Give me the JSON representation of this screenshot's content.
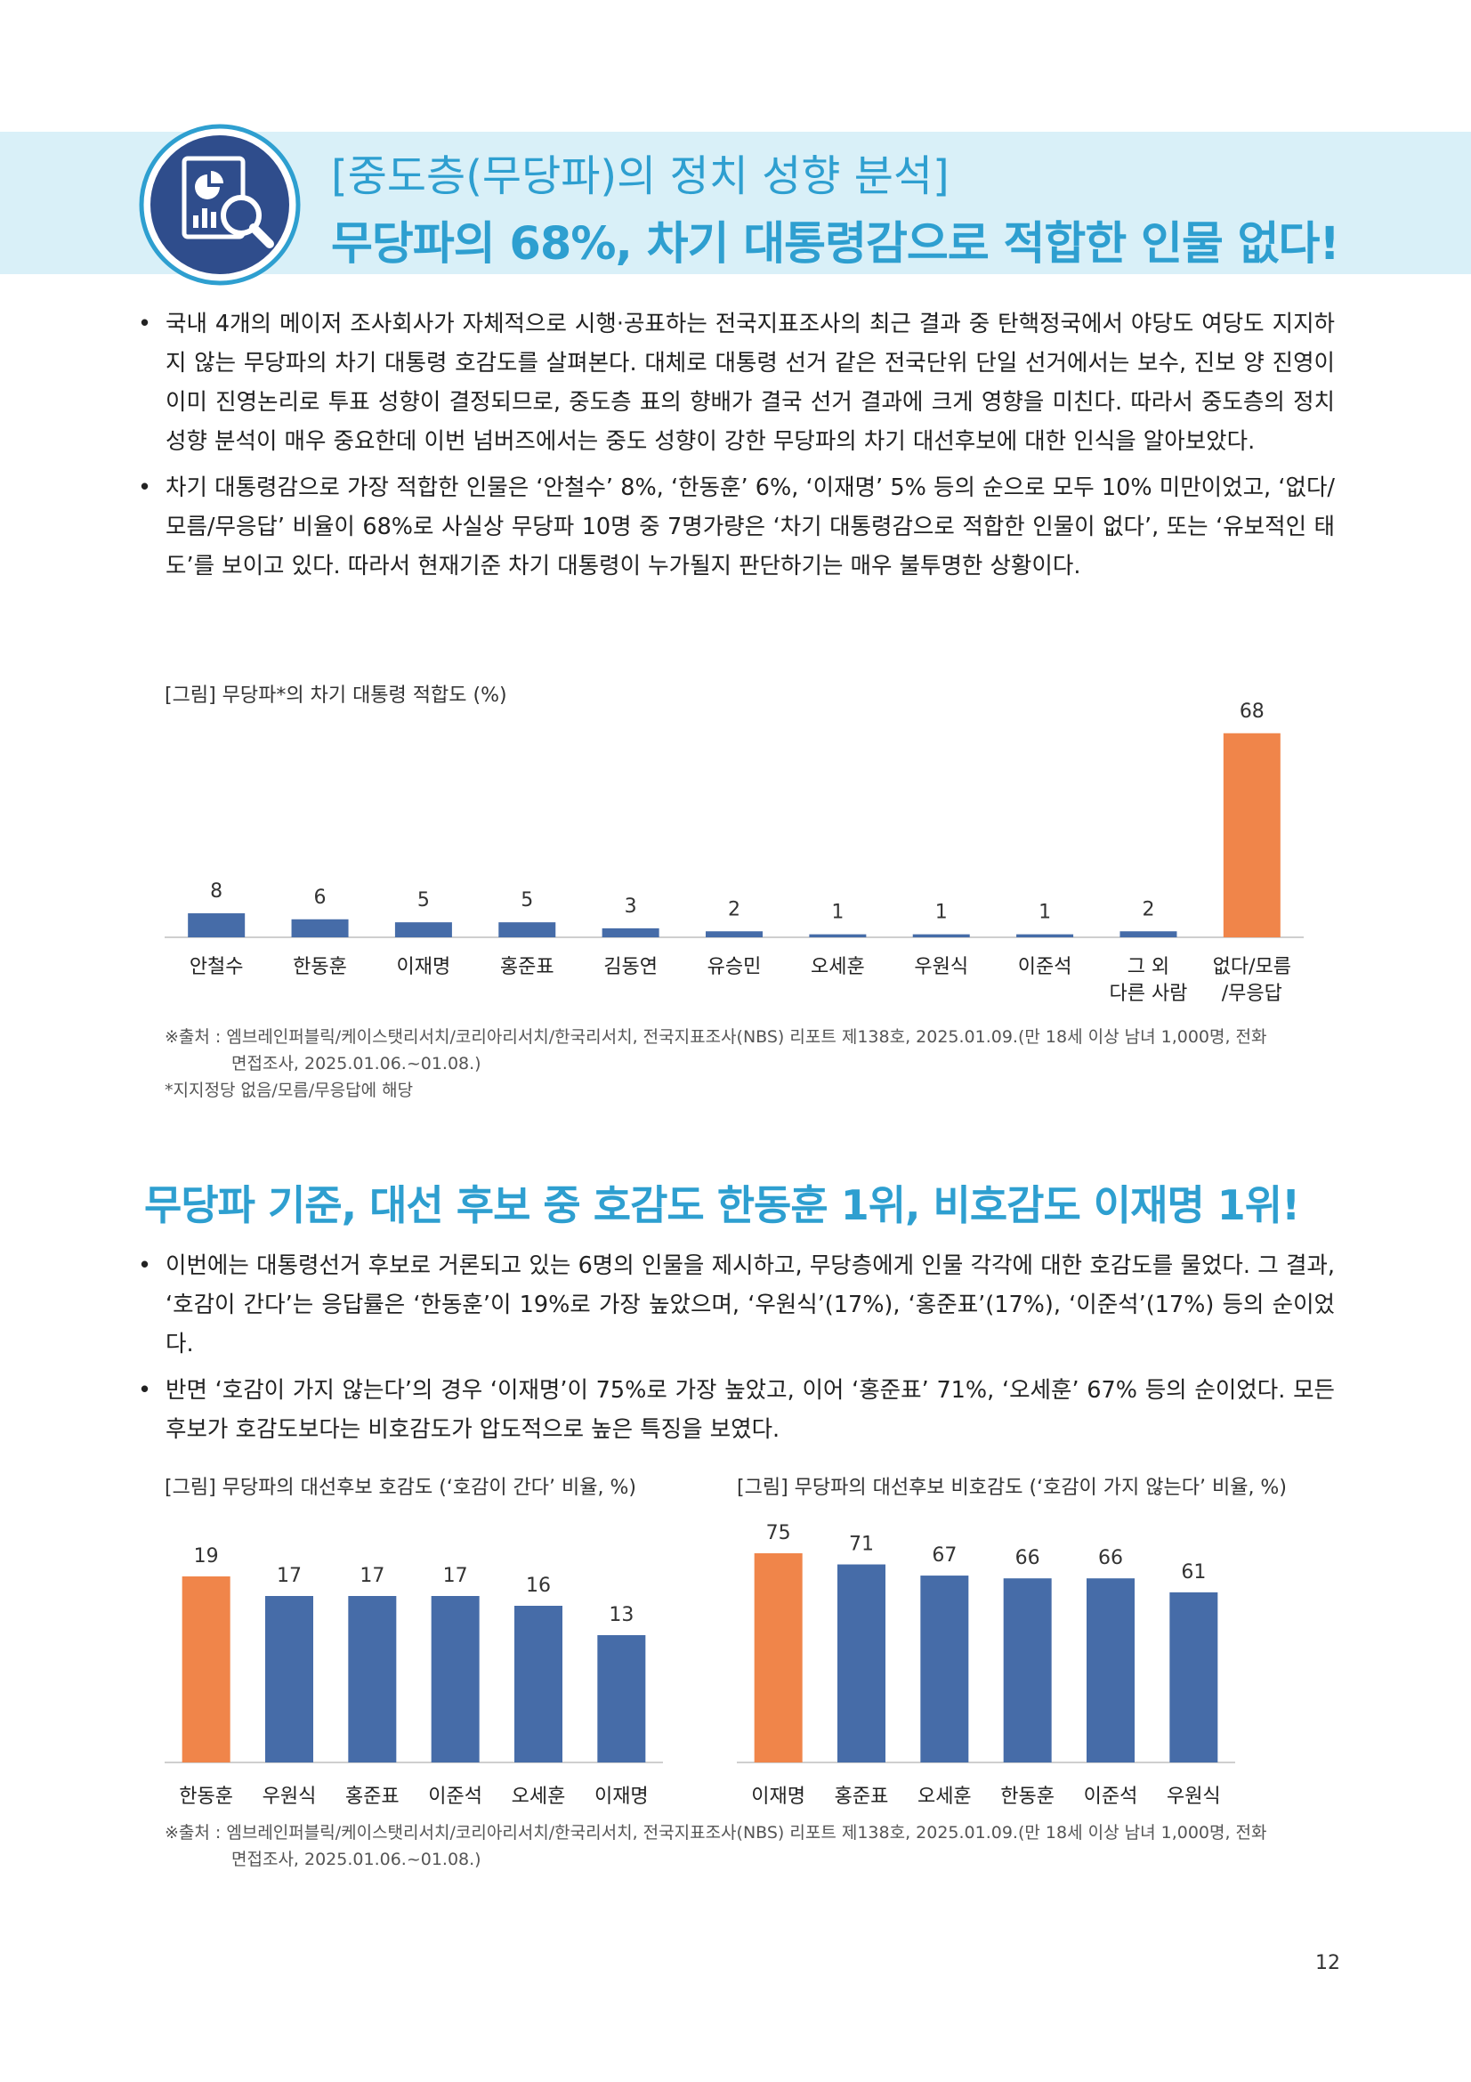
{
  "header": {
    "title_line1": "[중도층(무당파)의 정치 성향 분석]",
    "title_line2": "무당파의 68%, 차기 대통령감으로 적합한 인물 없다!",
    "icon": "chart-magnifier-icon"
  },
  "section1": {
    "bullets": [
      "국내 4개의 메이저 조사회사가 자체적으로 시행·공표하는 전국지표조사의 최근 결과 중 탄핵정국에서 야당도 여당도 지지하지 않는 무당파의 차기 대통령 호감도를 살펴본다. 대체로 대통령 선거 같은 전국단위 단일 선거에서는 보수, 진보 양 진영이 이미 진영논리로 투표 성향이 결정되므로, 중도층 표의 향배가 결국 선거 결과에 크게 영향을 미친다. 따라서 중도층의 정치 성향 분석이 매우 중요한데 이번 넘버즈에서는 중도 성향이 강한 무당파의 차기 대선후보에 대한 인식을 알아보았다.",
      "차기 대통령감으로 가장 적합한 인물은 ‘안철수’ 8%, ‘한동훈’ 6%, ‘이재명’ 5% 등의 순으로 모두 10% 미만이었고, ‘없다/모름/무응답’ 비율이 68%로 사실상 무당파 10명 중 7명가량은 ‘차기 대통령감으로 적합한 인물이 없다’, 또는 ‘유보적인 태도’를 보이고 있다. 따라서 현재기준 차기 대통령이 누가될지 판단하기는 매우 불투명한 상황이다."
    ],
    "figure_title": "[그림] 무당파*의 차기 대통령 적합도 (%)",
    "source_line1": "※출처 : 엠브레인퍼블릭/케이스탯리서치/코리아리서치/한국리서치, 전국지표조사(NBS) 리포트 제138호, 2025.01.09.(만 18세 이상 남녀 1,000명, 전화",
    "source_line2": "면접조사, 2025.01.06.~01.08.)",
    "note": "*지지정당 없음/모름/무응답에 해당"
  },
  "section2": {
    "heading": "무당파 기준, 대선 후보 중 호감도 한동훈 1위, 비호감도 이재명 1위!",
    "bullets": [
      "이번에는 대통령선거 후보로 거론되고 있는 6명의 인물을 제시하고, 무당층에게 인물 각각에 대한 호감도를 물었다. 그 결과, ‘호감이 간다’는 응답률은 ‘한동훈’이 19%로 가장 높았으며, ‘우원식’(17%), ‘홍준표’(17%), ‘이준석’(17%) 등의 순이었다.",
      "반면 ‘호감이 가지 않는다’의 경우 ‘이재명’이 75%로 가장 높았고, 이어 ‘홍준표’ 71%, ‘오세훈’ 67% 등의 순이었다. 모든 후보가 호감도보다는 비호감도가 압도적으로 높은 특징을 보였다."
    ],
    "figure_title_left": "[그림] 무당파의 대선후보 호감도 (‘호감이 간다’ 비율, %)",
    "figure_title_right": "[그림] 무당파의 대선후보 비호감도 (‘호감이 가지 않는다’ 비율, %)",
    "source_line1": "※출처 : 엠브레인퍼블릭/케이스탯리서치/코리아리서치/한국리서치, 전국지표조사(NBS) 리포트 제138호, 2025.01.09.(만 18세 이상 남녀 1,000명, 전화",
    "source_line2": "면접조사, 2025.01.06.~01.08.)"
  },
  "page_number": "12",
  "colors": {
    "accent": "#2e9fd0",
    "bar_blue": "#466ca8",
    "bar_orange": "#f0854a",
    "banner": "#d9f0f8"
  },
  "chart_data": [
    {
      "type": "bar",
      "title": "[그림] 무당파*의 차기 대통령 적합도 (%)",
      "categories": [
        "안철수",
        "한동훈",
        "이재명",
        "홍준표",
        "김동연",
        "유승민",
        "오세훈",
        "우원식",
        "이준석",
        "그 외\n다른 사람",
        "없다/모름\n/무응답"
      ],
      "values": [
        8,
        6,
        5,
        5,
        3,
        2,
        1,
        1,
        1,
        2,
        68
      ],
      "highlight_index": 10,
      "ylim": [
        0,
        70
      ]
    },
    {
      "type": "bar",
      "title": "[그림] 무당파의 대선후보 호감도 (‘호감이 간다’ 비율, %)",
      "categories": [
        "한동훈",
        "우원식",
        "홍준표",
        "이준석",
        "오세훈",
        "이재명"
      ],
      "values": [
        19,
        17,
        17,
        17,
        16,
        13
      ],
      "highlight_index": 0,
      "ylim": [
        0,
        20
      ]
    },
    {
      "type": "bar",
      "title": "[그림] 무당파의 대선후보 비호감도 (‘호감이 가지 않는다’ 비율, %)",
      "categories": [
        "이재명",
        "홍준표",
        "오세훈",
        "한동훈",
        "이준석",
        "우원식"
      ],
      "values": [
        75,
        71,
        67,
        66,
        66,
        61
      ],
      "highlight_index": 0,
      "ylim": [
        0,
        75
      ]
    }
  ]
}
